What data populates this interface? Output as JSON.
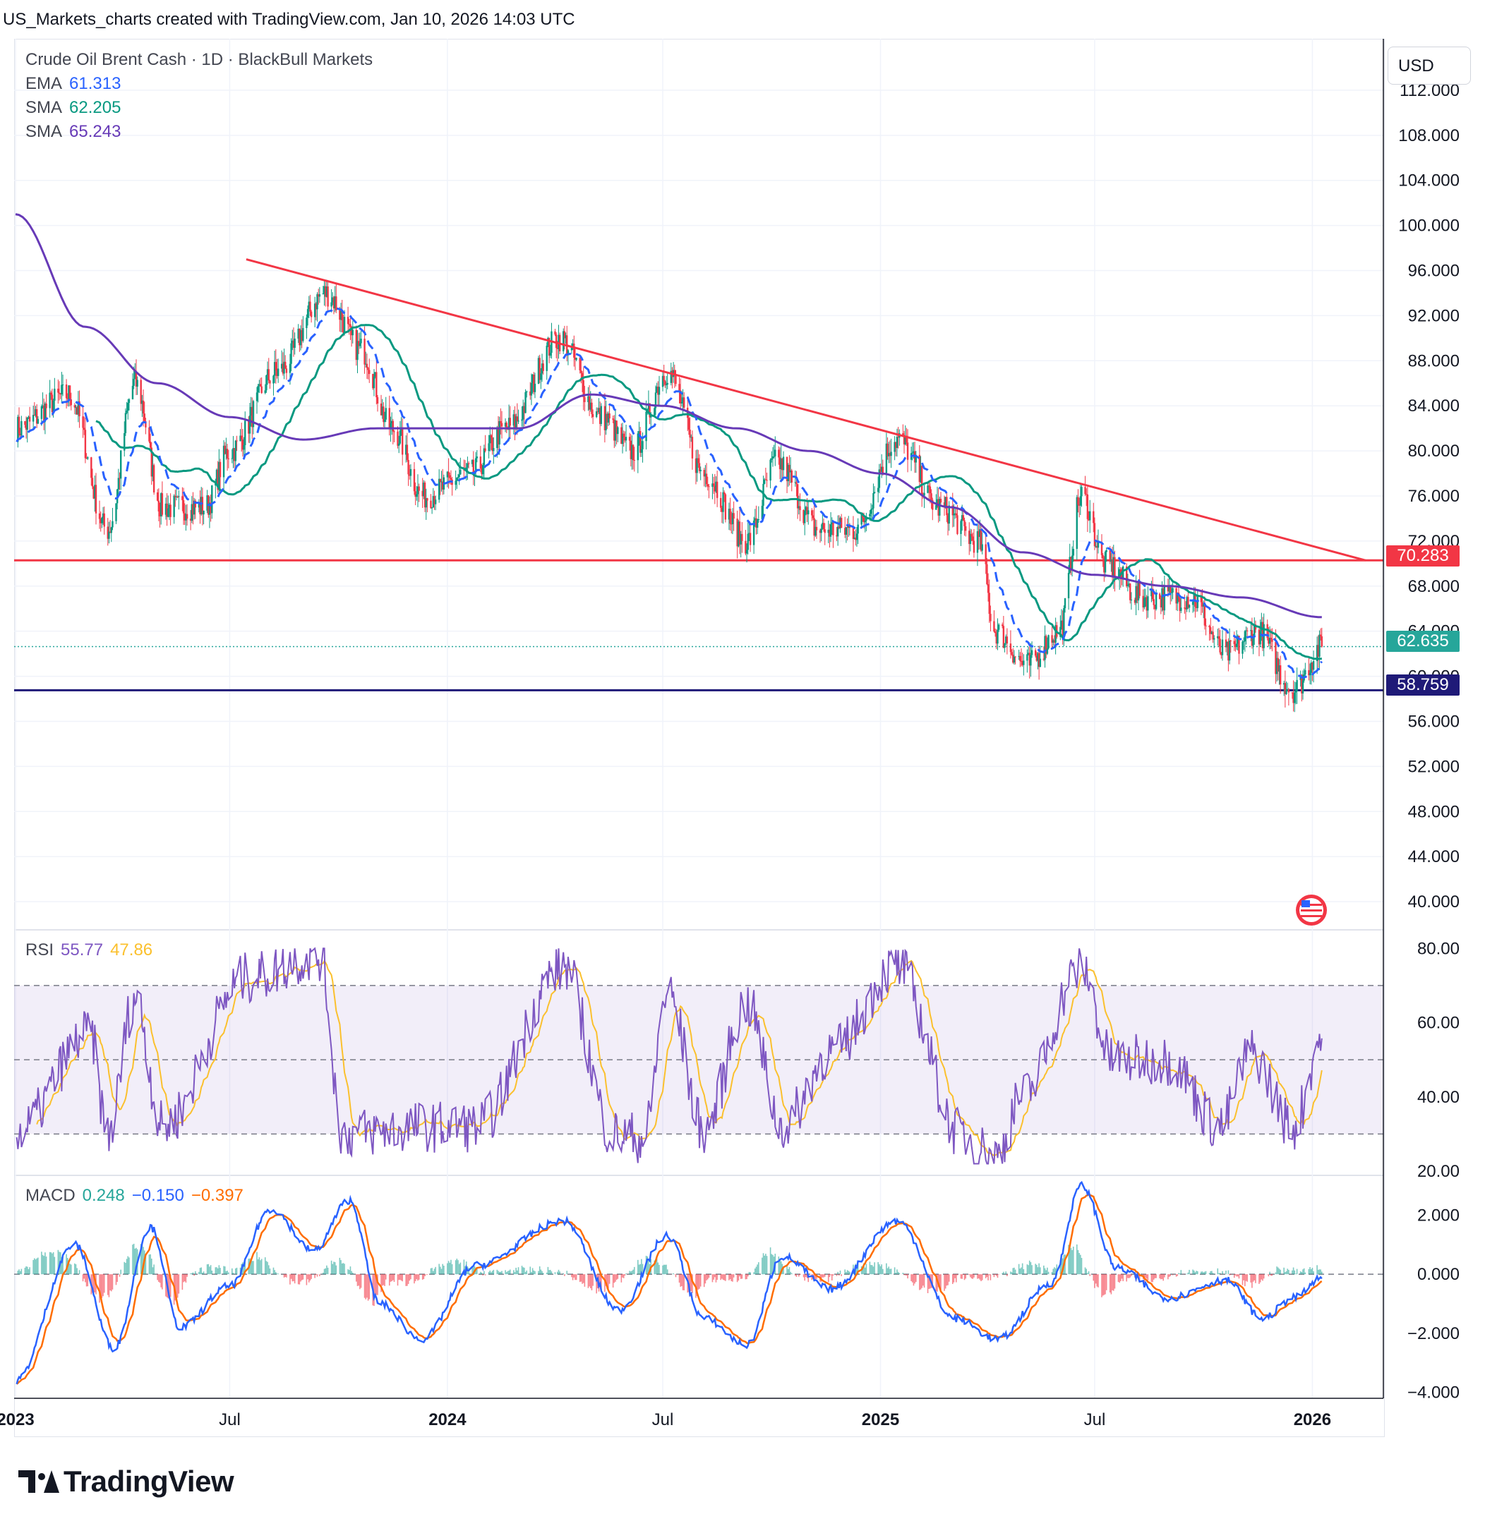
{
  "header": {
    "caption": "US_Markets_charts created with TradingView.com, Jan 10, 2026 14:03 UTC"
  },
  "currency_button": "USD",
  "legend": {
    "symbol": "Crude Oil Brent Cash · 1D · BlackBull Markets",
    "ema": {
      "label": "EMA",
      "value": "61.313",
      "color": "#2962ff"
    },
    "sma1": {
      "label": "SMA",
      "value": "62.205",
      "color": "#089981"
    },
    "sma2": {
      "label": "SMA",
      "value": "65.243",
      "color": "#673ab7"
    }
  },
  "rsi_legend": {
    "label": "RSI",
    "value": "55.77",
    "signal": "47.86",
    "value_color": "#7e57c2",
    "signal_color": "#fbc02d"
  },
  "macd_legend": {
    "label": "MACD",
    "hist": "0.248",
    "macd": "−0.150",
    "signal": "−0.397",
    "hist_color": "#26a69a",
    "macd_color": "#2962ff",
    "signal_color": "#ff6d00"
  },
  "price_tags": {
    "resistance": {
      "value": "70.283",
      "color": "#f23645"
    },
    "last": {
      "value": "62.635",
      "color": "#26a69a"
    },
    "support": {
      "value": "58.759",
      "color": "#1f1a78"
    }
  },
  "brand": {
    "name": "TradingView"
  },
  "chart_data": [
    {
      "type": "candlestick",
      "title": "Crude Oil Brent Cash · 1D · BlackBull Markets",
      "y_ticks": [
        "112.000",
        "108.000",
        "104.000",
        "100.000",
        "96.000",
        "92.000",
        "88.000",
        "84.000",
        "80.000",
        "76.000",
        "72.000",
        "68.000",
        "64.000",
        "60.000",
        "56.000",
        "52.000",
        "48.000",
        "44.000",
        "40.000"
      ],
      "ylim": [
        38,
        115
      ],
      "x_ticks": [
        "2023",
        "Jul",
        "2024",
        "Jul",
        "2025",
        "Jul",
        "2026"
      ],
      "close_path": {
        "x": [
          "2023-01-01",
          "2023-02-15",
          "2023-03-20",
          "2023-04-12",
          "2023-05-05",
          "2023-06-10",
          "2023-07-01",
          "2023-08-10",
          "2023-09-20",
          "2023-10-20",
          "2023-11-15",
          "2023-12-12",
          "2024-01-20",
          "2024-02-20",
          "2024-04-05",
          "2024-05-10",
          "2024-06-05",
          "2024-07-05",
          "2024-08-05",
          "2024-09-10",
          "2024-10-05",
          "2024-11-10",
          "2024-12-10",
          "2025-01-15",
          "2025-02-20",
          "2025-03-25",
          "2025-04-08",
          "2025-05-05",
          "2025-06-01",
          "2025-06-20",
          "2025-07-10",
          "2025-08-10",
          "2025-09-20",
          "2025-10-20",
          "2025-11-15",
          "2025-12-16",
          "2026-01-09"
        ],
        "close": [
          82,
          85,
          73,
          86,
          75,
          75,
          80,
          87,
          94,
          89,
          82,
          76,
          78,
          82,
          90,
          83,
          80,
          87,
          78,
          72,
          79,
          73,
          73,
          81,
          75,
          72,
          64,
          61,
          64,
          76,
          70,
          67,
          67,
          62,
          64,
          58.8,
          62.635
        ]
      },
      "lines": [
        {
          "name": "EMA",
          "value": 61.313,
          "style": "dashed",
          "color": "#2962ff"
        },
        {
          "name": "SMA",
          "value": 62.205,
          "color": "#089981"
        },
        {
          "name": "SMA",
          "value": 65.243,
          "color": "#673ab7"
        }
      ],
      "sma_long_path": {
        "x": [
          "2023-01-01",
          "2023-03-01",
          "2023-05-01",
          "2023-07-01",
          "2023-09-01",
          "2023-11-01",
          "2024-01-01",
          "2024-03-01",
          "2024-05-01",
          "2024-07-01",
          "2024-09-01",
          "2024-11-01",
          "2025-01-01",
          "2025-03-01",
          "2025-05-01",
          "2025-07-01",
          "2025-09-01",
          "2025-11-01",
          "2026-01-09"
        ],
        "value": [
          101,
          91,
          86,
          83,
          81,
          82,
          82,
          82,
          85,
          84,
          82,
          80,
          78,
          75,
          71,
          69,
          68,
          67,
          65.243
        ]
      },
      "trendline": {
        "from": [
          "2023-07-15",
          97
        ],
        "to": [
          "2026-02-15",
          70.283
        ],
        "color": "#f23645"
      },
      "horizontal_levels": [
        {
          "value": 70.283,
          "color": "#f23645"
        },
        {
          "value": 58.759,
          "color": "#1f1a78"
        },
        {
          "value": 62.635,
          "color": "#26a69a",
          "style": "dotted"
        }
      ]
    },
    {
      "type": "line",
      "title": "RSI",
      "y_ticks": [
        "80.00",
        "60.00",
        "40.00",
        "20.00"
      ],
      "ylim": [
        20,
        85
      ],
      "bands": [
        70,
        50,
        30
      ],
      "x": [
        "2023-01-01",
        "2023-03-05",
        "2023-03-20",
        "2023-04-12",
        "2023-05-05",
        "2023-07-15",
        "2023-09-15",
        "2023-10-05",
        "2023-12-10",
        "2024-01-25",
        "2024-04-08",
        "2024-05-20",
        "2024-06-15",
        "2024-07-05",
        "2024-08-05",
        "2024-09-10",
        "2024-10-10",
        "2024-11-20",
        "2025-01-15",
        "2025-03-10",
        "2025-04-08",
        "2025-05-01",
        "2025-06-20",
        "2025-07-15",
        "2025-09-01",
        "2025-10-15",
        "2025-11-10",
        "2025-12-16",
        "2026-01-09"
      ],
      "rsi": [
        30,
        57,
        30,
        67,
        32,
        72,
        78,
        30,
        32,
        32,
        75,
        30,
        29,
        68,
        31,
        65,
        32,
        52,
        75,
        30,
        24,
        40,
        75,
        50,
        50,
        32,
        52,
        32,
        55.77
      ],
      "signal_last": 47.86
    },
    {
      "type": "line",
      "title": "MACD",
      "y_ticks": [
        "2.000",
        "0.000",
        "−2.000",
        "−4.000"
      ],
      "ylim": [
        -4.2,
        3.3
      ],
      "x": [
        "2023-01-01",
        "2023-02-20",
        "2023-03-25",
        "2023-04-25",
        "2023-05-20",
        "2023-07-01",
        "2023-08-05",
        "2023-09-10",
        "2023-10-10",
        "2023-11-05",
        "2023-12-10",
        "2024-01-25",
        "2024-04-08",
        "2024-05-25",
        "2024-07-05",
        "2024-08-05",
        "2024-09-10",
        "2024-10-10",
        "2024-11-20",
        "2025-01-15",
        "2025-03-05",
        "2025-04-10",
        "2025-05-25",
        "2025-06-20",
        "2025-07-20",
        "2025-09-01",
        "2025-10-20",
        "2025-11-20",
        "2025-12-16",
        "2026-01-09"
      ],
      "macd": [
        -3.6,
        1.0,
        -2.5,
        1.6,
        -1.8,
        -0.4,
        2.2,
        0.8,
        2.5,
        -1.0,
        -2.2,
        0.3,
        1.8,
        -1.2,
        1.3,
        -1.5,
        -2.4,
        0.6,
        -0.5,
        1.8,
        -1.5,
        -2.2,
        -0.3,
        3.0,
        0.2,
        -0.8,
        -0.2,
        -1.5,
        -0.8,
        -0.15
      ],
      "signal_last": -0.397,
      "hist_last": 0.248
    }
  ]
}
